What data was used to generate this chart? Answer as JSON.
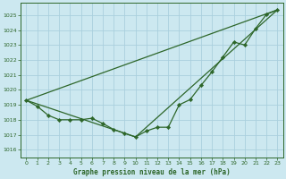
{
  "title": "Graphe pression niveau de la mer (hPa)",
  "bg_color": "#cce8f0",
  "grid_color": "#aacfde",
  "line_color": "#2d6629",
  "marker_color": "#2d6629",
  "xlim": [
    -0.5,
    23.5
  ],
  "ylim": [
    1015.5,
    1025.8
  ],
  "yticks": [
    1016,
    1017,
    1018,
    1019,
    1020,
    1021,
    1022,
    1023,
    1024,
    1025
  ],
  "xticks": [
    0,
    1,
    2,
    3,
    4,
    5,
    6,
    7,
    8,
    9,
    10,
    11,
    12,
    13,
    14,
    15,
    16,
    17,
    18,
    19,
    20,
    21,
    22,
    23
  ],
  "series_main": {
    "x": [
      0,
      1,
      2,
      3,
      4,
      5,
      6,
      7,
      8,
      9,
      10,
      11,
      12,
      13,
      14,
      15,
      16,
      17,
      18,
      19,
      20,
      21,
      22,
      23
    ],
    "y": [
      1019.3,
      1018.9,
      1018.3,
      1018.0,
      1018.0,
      1018.0,
      1018.1,
      1017.75,
      1017.35,
      1017.1,
      1016.85,
      1017.25,
      1017.5,
      1017.5,
      1019.0,
      1019.35,
      1020.3,
      1021.2,
      1022.2,
      1023.2,
      1023.0,
      1024.1,
      1025.05,
      1025.35
    ]
  },
  "series_line1": {
    "x": [
      0,
      23
    ],
    "y": [
      1019.3,
      1025.35
    ]
  },
  "series_line2": {
    "x": [
      0,
      10,
      23
    ],
    "y": [
      1019.3,
      1016.85,
      1025.35
    ]
  }
}
